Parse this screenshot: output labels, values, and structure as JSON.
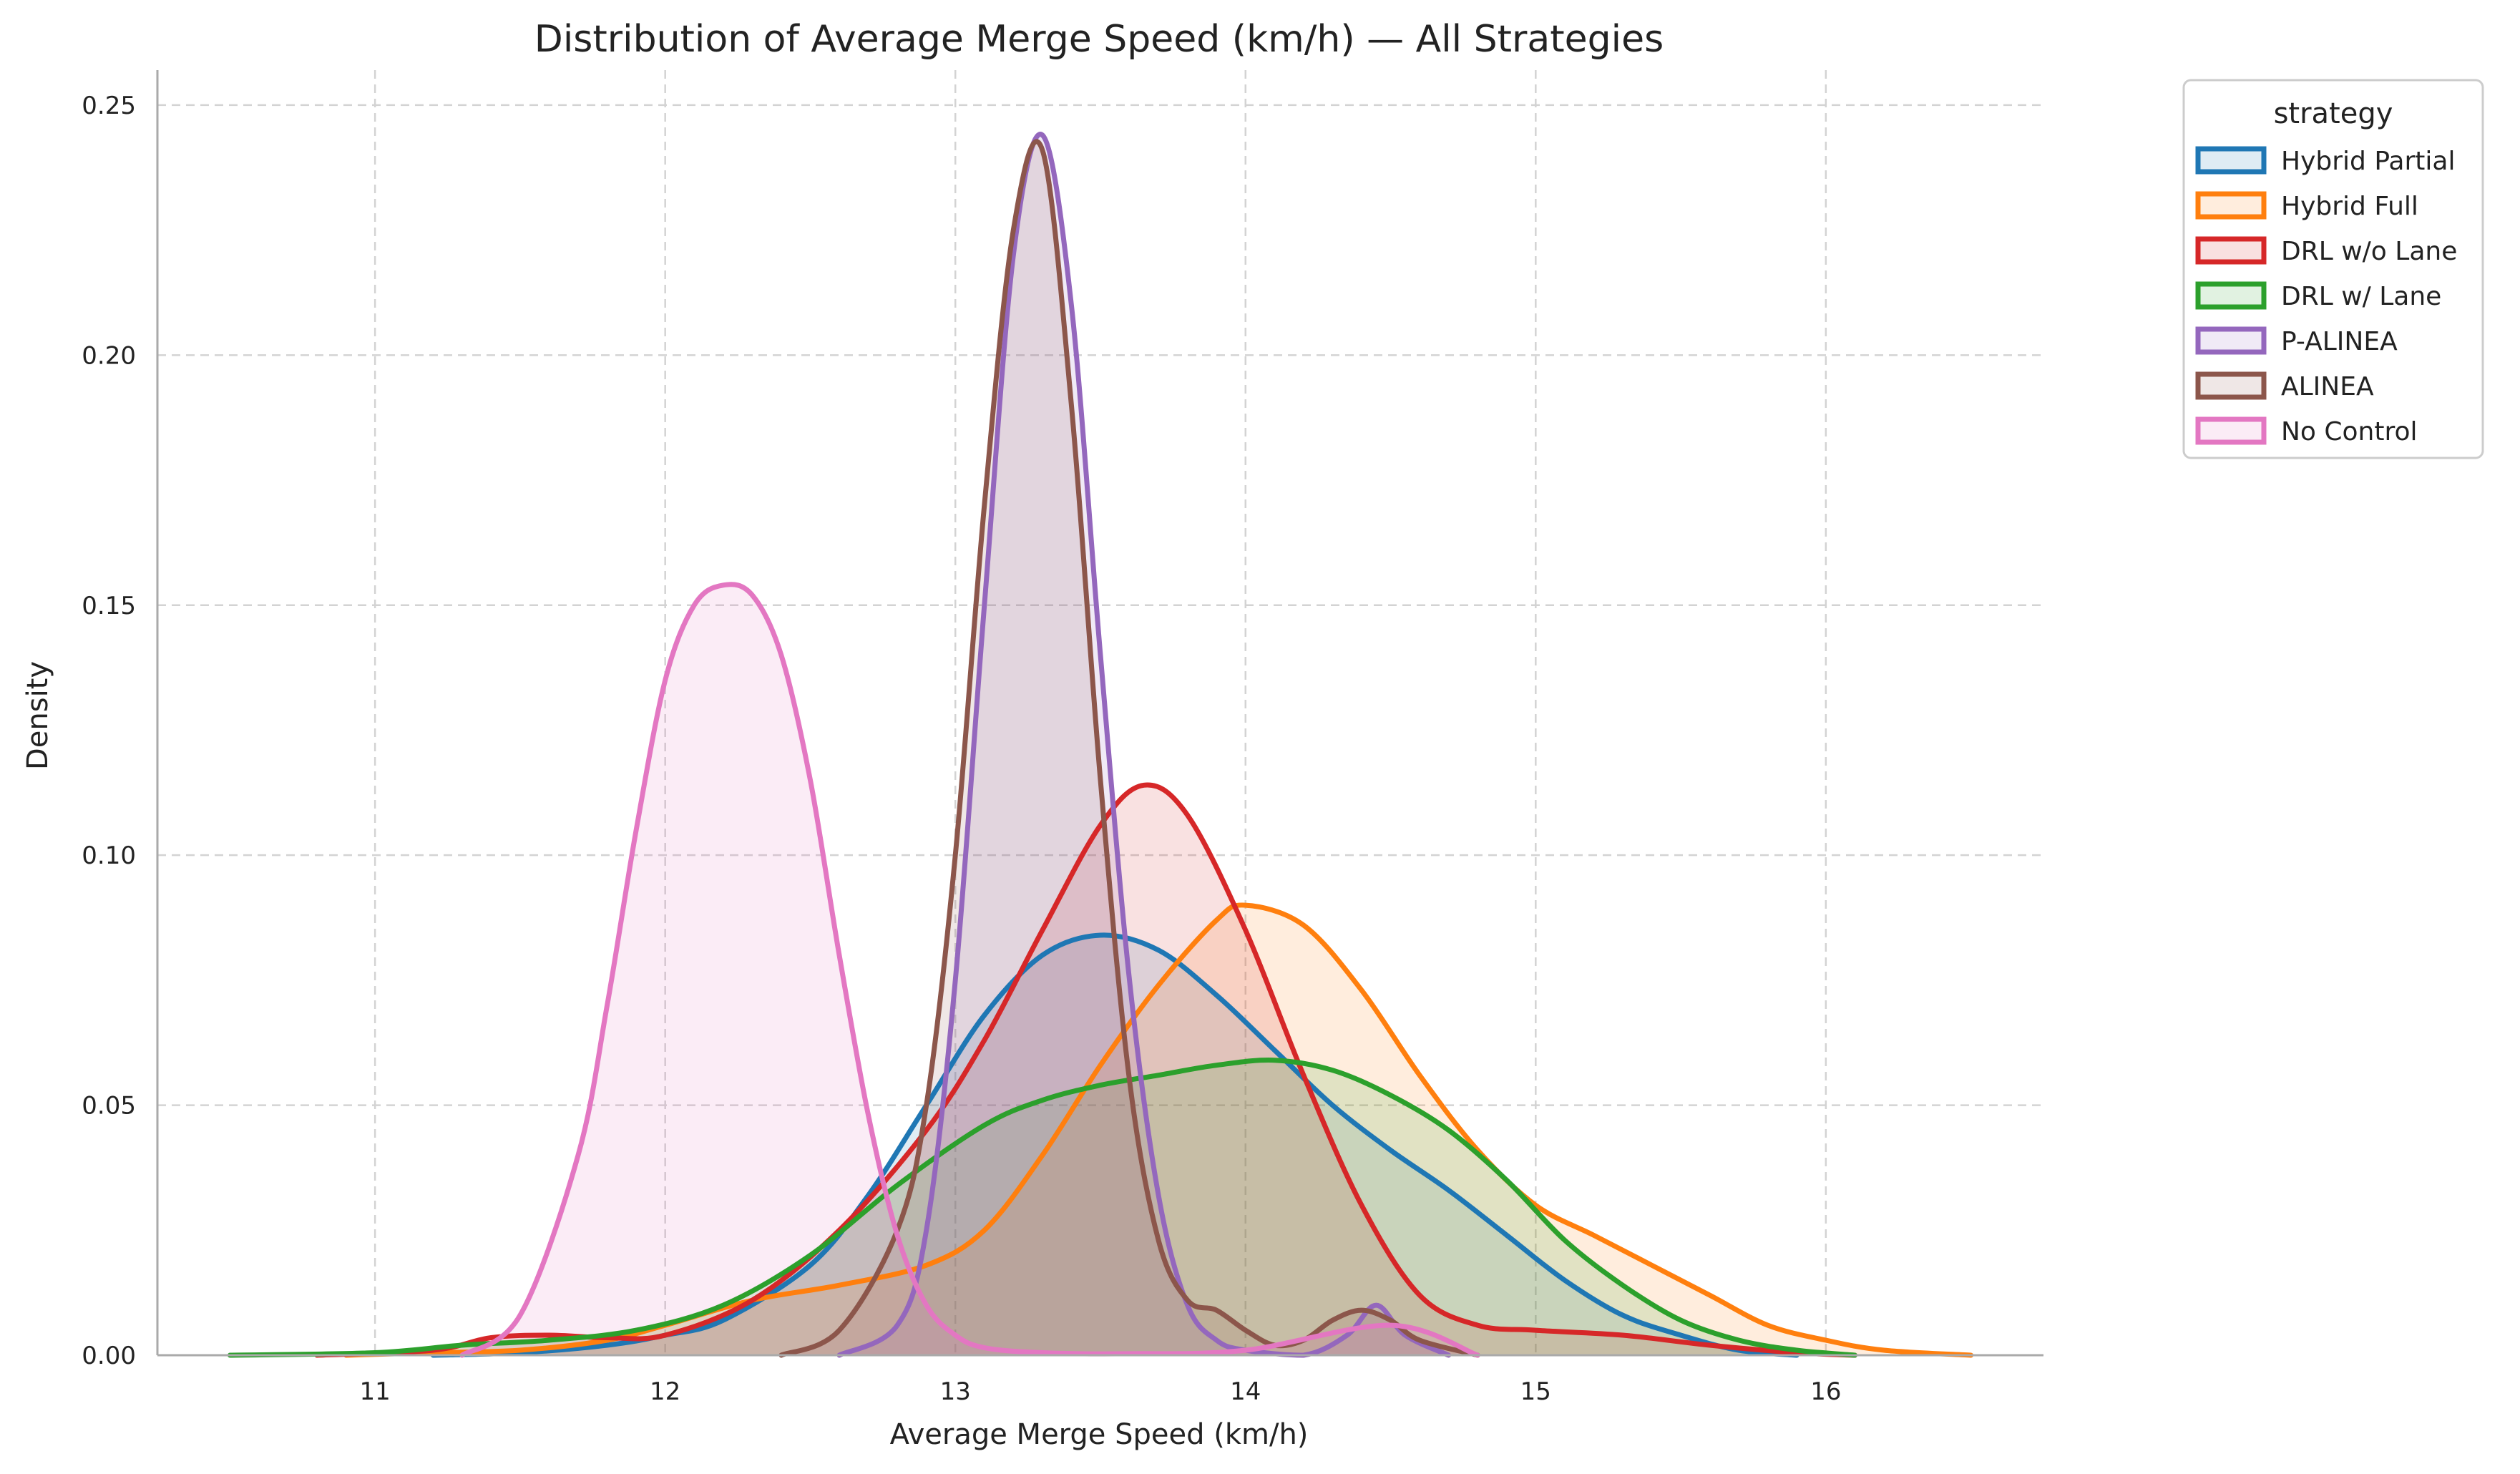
{
  "chart_data": {
    "type": "area",
    "title": "Distribution of Average Merge Speed (km/h) — All Strategies",
    "xlabel": "Average Merge Speed (km/h)",
    "ylabel": "Density",
    "xlim": [
      10.25,
      16.75
    ],
    "ylim": [
      0,
      0.257
    ],
    "xticks": [
      11,
      12,
      13,
      14,
      15,
      16
    ],
    "xtick_labels": [
      "11",
      "12",
      "13",
      "14",
      "15",
      "16"
    ],
    "yticks": [
      0,
      0.05,
      0.1,
      0.15,
      0.2,
      0.25
    ],
    "ytick_labels": [
      "0.00",
      "0.05",
      "0.10",
      "0.15",
      "0.20",
      "0.25"
    ],
    "grid": true,
    "legend": {
      "title": "strategy",
      "position": "outside-top-right"
    },
    "series": [
      {
        "name": "Hybrid Partial",
        "color": "#1f77b4",
        "x": [
          11.2,
          11.5,
          11.8,
          12.0,
          12.2,
          12.5,
          12.7,
          12.9,
          13.1,
          13.3,
          13.5,
          13.7,
          13.9,
          14.1,
          14.3,
          14.5,
          14.7,
          14.9,
          15.1,
          15.3,
          15.5,
          15.7,
          15.9
        ],
        "y": [
          0.0,
          0.0005,
          0.002,
          0.004,
          0.007,
          0.018,
          0.032,
          0.05,
          0.068,
          0.08,
          0.084,
          0.081,
          0.072,
          0.061,
          0.05,
          0.041,
          0.033,
          0.024,
          0.015,
          0.008,
          0.004,
          0.001,
          0.0
        ]
      },
      {
        "name": "Hybrid Full",
        "color": "#ff7f0e",
        "x": [
          10.9,
          11.2,
          11.5,
          11.8,
          12.0,
          12.3,
          12.6,
          12.9,
          13.1,
          13.3,
          13.5,
          13.7,
          13.9,
          14.0,
          14.2,
          14.4,
          14.6,
          14.8,
          15.0,
          15.2,
          15.4,
          15.6,
          15.8,
          16.0,
          16.2,
          16.5
        ],
        "y": [
          0.0,
          0.0005,
          0.001,
          0.003,
          0.006,
          0.011,
          0.014,
          0.018,
          0.025,
          0.04,
          0.058,
          0.074,
          0.087,
          0.09,
          0.086,
          0.073,
          0.056,
          0.041,
          0.03,
          0.024,
          0.018,
          0.012,
          0.006,
          0.003,
          0.001,
          0.0
        ]
      },
      {
        "name": "DRL w/o Lane",
        "color": "#d62728",
        "x": [
          10.8,
          11.2,
          11.4,
          11.6,
          11.8,
          12.0,
          12.3,
          12.6,
          12.9,
          13.1,
          13.3,
          13.5,
          13.65,
          13.8,
          14.0,
          14.2,
          14.4,
          14.6,
          14.8,
          15.0,
          15.3,
          15.6,
          15.9,
          16.1
        ],
        "y": [
          0.0,
          0.001,
          0.0035,
          0.004,
          0.0035,
          0.004,
          0.011,
          0.025,
          0.045,
          0.063,
          0.085,
          0.106,
          0.114,
          0.108,
          0.085,
          0.056,
          0.03,
          0.012,
          0.006,
          0.005,
          0.004,
          0.002,
          0.0005,
          0.0
        ]
      },
      {
        "name": "DRL w/ Lane",
        "color": "#2ca02c",
        "x": [
          10.5,
          11.0,
          11.3,
          11.6,
          11.9,
          12.2,
          12.5,
          12.8,
          13.1,
          13.3,
          13.5,
          13.7,
          13.9,
          14.1,
          14.3,
          14.5,
          14.7,
          14.9,
          15.1,
          15.3,
          15.5,
          15.7,
          15.9,
          16.1
        ],
        "y": [
          0.0,
          0.0005,
          0.002,
          0.003,
          0.005,
          0.01,
          0.02,
          0.034,
          0.046,
          0.051,
          0.054,
          0.056,
          0.058,
          0.059,
          0.057,
          0.052,
          0.045,
          0.035,
          0.023,
          0.014,
          0.007,
          0.003,
          0.001,
          0.0
        ]
      },
      {
        "name": "P-ALINEA",
        "color": "#9467bd",
        "x": [
          12.6,
          12.8,
          12.9,
          13.0,
          13.1,
          13.2,
          13.3,
          13.4,
          13.5,
          13.6,
          13.7,
          13.8,
          13.9,
          14.0,
          14.2,
          14.35,
          14.45,
          14.55,
          14.7
        ],
        "y": [
          0.0,
          0.006,
          0.025,
          0.075,
          0.15,
          0.22,
          0.244,
          0.21,
          0.14,
          0.075,
          0.032,
          0.01,
          0.003,
          0.001,
          0.0,
          0.004,
          0.01,
          0.004,
          0.0
        ]
      },
      {
        "name": "ALINEA",
        "color": "#8c564b",
        "x": [
          12.4,
          12.6,
          12.8,
          12.9,
          13.0,
          13.1,
          13.2,
          13.3,
          13.4,
          13.5,
          13.6,
          13.7,
          13.8,
          13.9,
          14.0,
          14.1,
          14.2,
          14.3,
          14.4,
          14.5,
          14.6,
          14.8
        ],
        "y": [
          0.0,
          0.005,
          0.025,
          0.05,
          0.1,
          0.17,
          0.225,
          0.241,
          0.19,
          0.115,
          0.055,
          0.023,
          0.011,
          0.009,
          0.005,
          0.002,
          0.003,
          0.007,
          0.009,
          0.007,
          0.003,
          0.0
        ]
      },
      {
        "name": "No Control",
        "color": "#e377c2",
        "x": [
          11.3,
          11.5,
          11.7,
          11.8,
          11.9,
          12.0,
          12.1,
          12.2,
          12.3,
          12.4,
          12.5,
          12.6,
          12.7,
          12.8,
          12.9,
          13.0,
          13.1,
          13.3,
          13.6,
          14.0,
          14.5,
          14.8
        ],
        "y": [
          0.0,
          0.008,
          0.04,
          0.07,
          0.105,
          0.135,
          0.15,
          0.154,
          0.152,
          0.14,
          0.115,
          0.08,
          0.048,
          0.024,
          0.01,
          0.004,
          0.0015,
          0.0005,
          0.0003,
          0.001,
          0.006,
          0.0
        ]
      }
    ]
  }
}
